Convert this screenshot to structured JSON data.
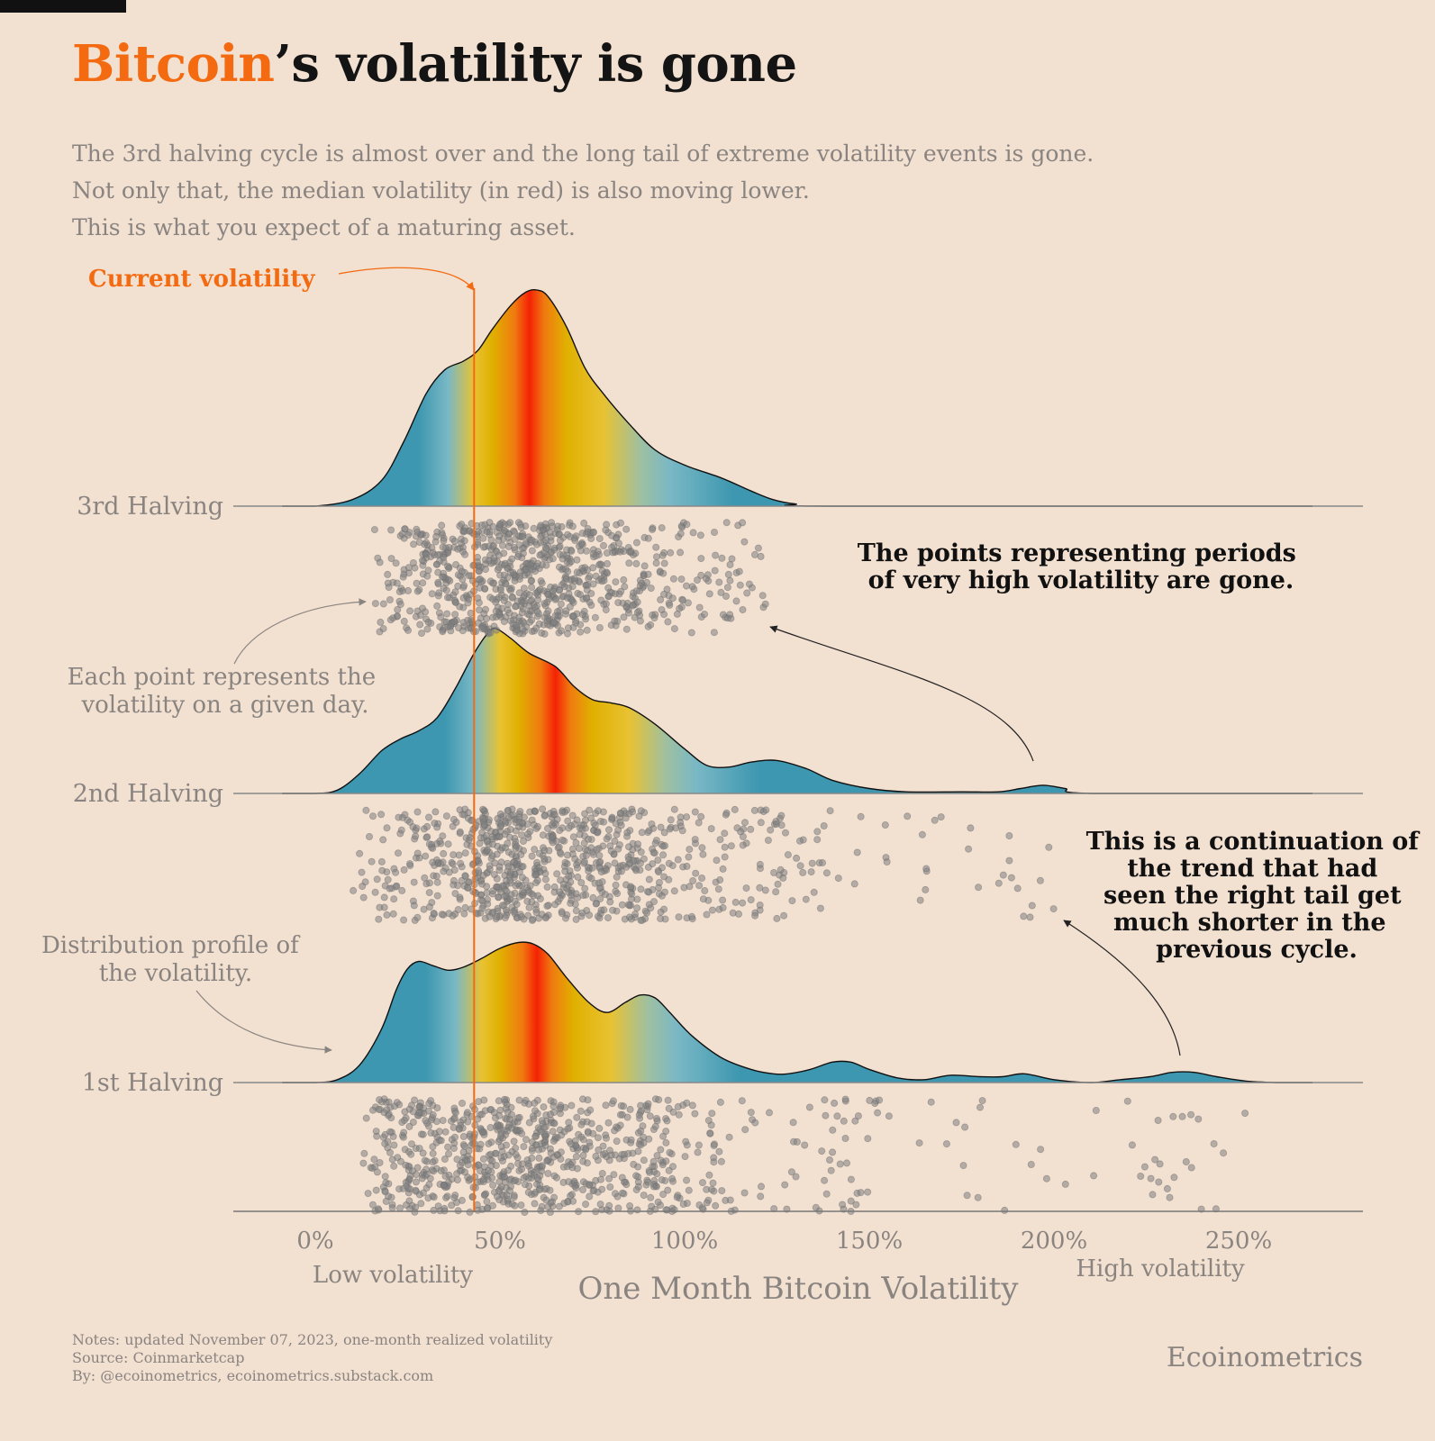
{
  "header": {
    "title_highlight": "Bitcoin",
    "title_rest": "’s volatility is gone",
    "subtitle_lines": [
      "The 3rd halving cycle is almost over and the long tail of extreme volatility events is gone.",
      "Not only that, the median volatility (in red) is also moving lower.",
      "This is what you expect of a maturing asset."
    ]
  },
  "colors": {
    "background": "#f2e0d1",
    "accent": "#f36a10",
    "ridge_low": "#3d97b0",
    "ridge_mid": "#e8c232",
    "ridge_median": "#f52205",
    "points": "#808080",
    "text_muted": "#8a8480"
  },
  "annotations": {
    "current_volatility": "Current volatility",
    "points_explainer": [
      "Each point represents the",
      "volatility on a given day."
    ],
    "profile_explainer": [
      "Distribution profile of",
      "the volatility."
    ],
    "tail_gone": [
      "The points representing periods",
      "of very high volatility are gone."
    ],
    "trend": [
      "This is a continuation of",
      "the trend that had",
      "seen the right tail get",
      "much shorter in the",
      "previous cycle."
    ]
  },
  "footer": {
    "notes": "Notes: updated November 07, 2023, one-month realized volatility",
    "source": "Source: Coinmarketcap",
    "by": "By: @ecoinometrics, ecoinometrics.substack.com",
    "brand": "Ecoinometrics"
  },
  "chart_data": {
    "type": "ridgeline",
    "title": "Bitcoin’s volatility is gone",
    "xlabel": "One Month Bitcoin Volatility",
    "x_end_labels": {
      "low": "Low volatility",
      "high": "High volatility"
    },
    "xlim": [
      -22,
      284
    ],
    "x_ticks": [
      0,
      50,
      100,
      150,
      200,
      250
    ],
    "x_tick_labels": [
      "0%",
      "50%",
      "100%",
      "150%",
      "200%",
      "250%"
    ],
    "current_volatility": 43,
    "grid": false,
    "series": [
      {
        "name": "3rd Halving",
        "median": 58,
        "range": [
          16,
          123
        ],
        "density": [
          [
            -9,
            0
          ],
          [
            0,
            0
          ],
          [
            10,
            0.03
          ],
          [
            18,
            0.12
          ],
          [
            24,
            0.3
          ],
          [
            30,
            0.52
          ],
          [
            35,
            0.63
          ],
          [
            40,
            0.67
          ],
          [
            44,
            0.72
          ],
          [
            48,
            0.82
          ],
          [
            53,
            0.93
          ],
          [
            57,
            0.99
          ],
          [
            60,
            1.0
          ],
          [
            63,
            0.97
          ],
          [
            68,
            0.83
          ],
          [
            73,
            0.64
          ],
          [
            78,
            0.52
          ],
          [
            85,
            0.38
          ],
          [
            92,
            0.26
          ],
          [
            100,
            0.19
          ],
          [
            110,
            0.13
          ],
          [
            118,
            0.07
          ],
          [
            124,
            0.03
          ],
          [
            130,
            0.01
          ],
          [
            140,
            0
          ],
          [
            270,
            0
          ]
        ]
      },
      {
        "name": "2nd Halving",
        "median": 65,
        "range": [
          10,
          200
        ],
        "density": [
          [
            -9,
            0
          ],
          [
            0,
            0
          ],
          [
            6,
            0.02
          ],
          [
            12,
            0.12
          ],
          [
            18,
            0.26
          ],
          [
            23,
            0.33
          ],
          [
            28,
            0.38
          ],
          [
            33,
            0.46
          ],
          [
            38,
            0.64
          ],
          [
            43,
            0.85
          ],
          [
            47,
            0.98
          ],
          [
            49,
            1.0
          ],
          [
            53,
            0.94
          ],
          [
            58,
            0.85
          ],
          [
            65,
            0.77
          ],
          [
            70,
            0.65
          ],
          [
            75,
            0.57
          ],
          [
            80,
            0.55
          ],
          [
            85,
            0.52
          ],
          [
            92,
            0.42
          ],
          [
            100,
            0.27
          ],
          [
            106,
            0.17
          ],
          [
            112,
            0.16
          ],
          [
            118,
            0.19
          ],
          [
            125,
            0.2
          ],
          [
            133,
            0.15
          ],
          [
            140,
            0.08
          ],
          [
            150,
            0.03
          ],
          [
            160,
            0.01
          ],
          [
            175,
            0.01
          ],
          [
            185,
            0.01
          ],
          [
            191,
            0.03
          ],
          [
            197,
            0.05
          ],
          [
            203,
            0.03
          ],
          [
            210,
            0
          ],
          [
            270,
            0
          ]
        ]
      },
      {
        "name": "1st Halving",
        "median": 60,
        "range": [
          13,
          252
        ],
        "density": [
          [
            -9,
            0
          ],
          [
            0,
            0
          ],
          [
            6,
            0.02
          ],
          [
            12,
            0.12
          ],
          [
            18,
            0.37
          ],
          [
            22,
            0.64
          ],
          [
            25,
            0.78
          ],
          [
            28,
            0.83
          ],
          [
            32,
            0.8
          ],
          [
            36,
            0.77
          ],
          [
            40,
            0.79
          ],
          [
            45,
            0.85
          ],
          [
            50,
            0.92
          ],
          [
            55,
            0.96
          ],
          [
            59,
            0.95
          ],
          [
            63,
            0.88
          ],
          [
            68,
            0.72
          ],
          [
            74,
            0.55
          ],
          [
            79,
            0.48
          ],
          [
            84,
            0.55
          ],
          [
            88,
            0.6
          ],
          [
            92,
            0.58
          ],
          [
            96,
            0.48
          ],
          [
            102,
            0.32
          ],
          [
            110,
            0.17
          ],
          [
            118,
            0.09
          ],
          [
            124,
            0.06
          ],
          [
            128,
            0.06
          ],
          [
            134,
            0.09
          ],
          [
            140,
            0.14
          ],
          [
            145,
            0.14
          ],
          [
            150,
            0.09
          ],
          [
            158,
            0.03
          ],
          [
            165,
            0.02
          ],
          [
            172,
            0.05
          ],
          [
            180,
            0.04
          ],
          [
            186,
            0.04
          ],
          [
            192,
            0.06
          ],
          [
            200,
            0.02
          ],
          [
            210,
            0.0
          ],
          [
            218,
            0.02
          ],
          [
            226,
            0.04
          ],
          [
            232,
            0.07
          ],
          [
            238,
            0.07
          ],
          [
            244,
            0.04
          ],
          [
            252,
            0.01
          ],
          [
            260,
            0
          ],
          [
            270,
            0
          ]
        ]
      }
    ]
  }
}
